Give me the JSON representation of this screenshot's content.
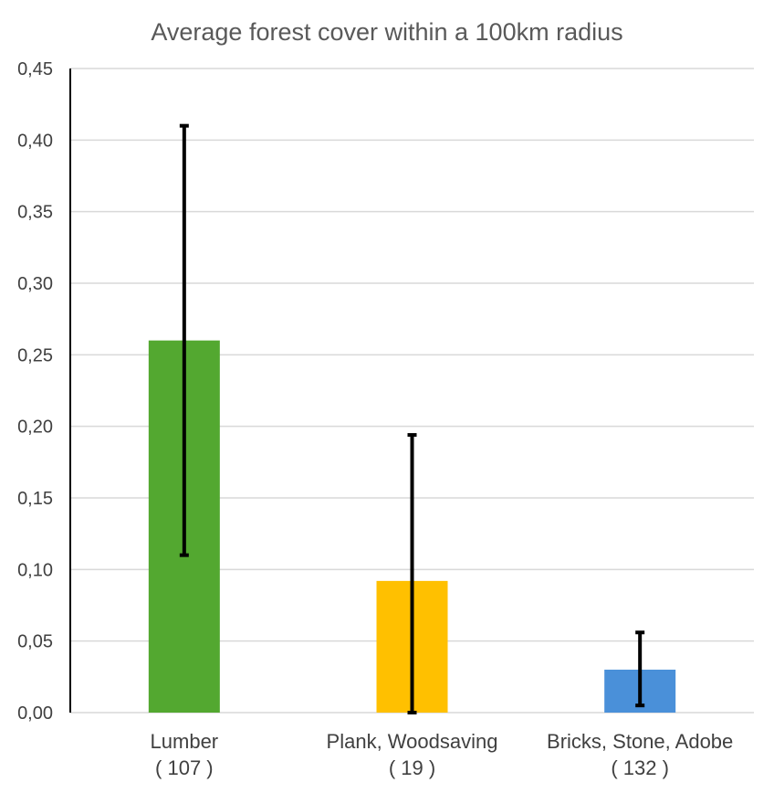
{
  "chart_data": {
    "type": "bar",
    "title": "Average forest cover within a 100km radius",
    "xlabel": "",
    "ylabel": "",
    "ylim": [
      0,
      0.45
    ],
    "ytick_step": 0.05,
    "ytick_labels": [
      "0,00",
      "0,05",
      "0,10",
      "0,15",
      "0,20",
      "0,25",
      "0,30",
      "0,35",
      "0,40",
      "0,45"
    ],
    "categories": [
      "Lumber",
      "Plank, Woodsaving",
      "Bricks, Stone, Adobe"
    ],
    "category_counts": [
      "( 107 )",
      "( 19 )",
      "( 132 )"
    ],
    "values": [
      0.26,
      0.092,
      0.03
    ],
    "error_low": [
      0.11,
      0.0,
      0.005
    ],
    "error_high": [
      0.41,
      0.194,
      0.056
    ],
    "colors": [
      "#53a830",
      "#ffc000",
      "#4a90d9"
    ],
    "grid": true,
    "legend": "none"
  }
}
